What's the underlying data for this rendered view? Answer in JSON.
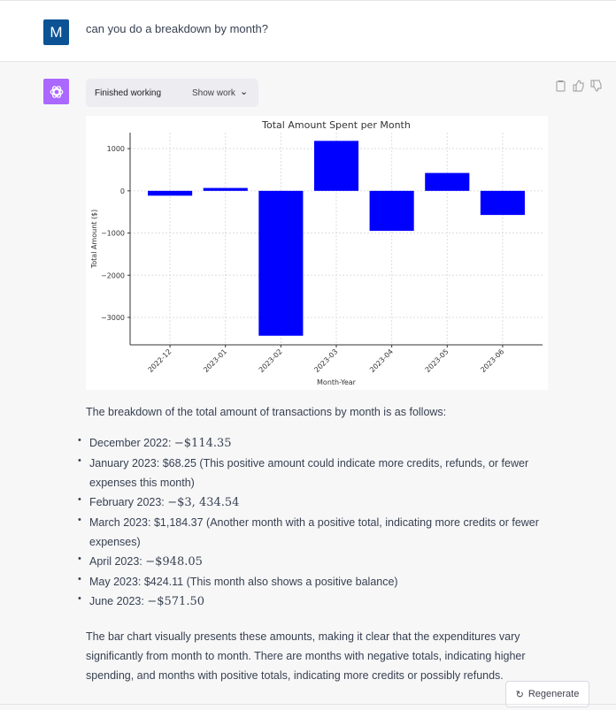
{
  "user": {
    "avatar_letter": "M",
    "message": "can you do a breakdown by month?"
  },
  "assistant": {
    "status": "Finished working",
    "show_work": "Show work",
    "intro": "The breakdown of the total amount of transactions by month is as follows:",
    "items": [
      {
        "label": "December 2022: ",
        "value": "−$114.35",
        "note": ""
      },
      {
        "label": "January 2023: ",
        "value": "$68.25",
        "note": " (This positive amount could indicate more credits, refunds, or fewer expenses this month)"
      },
      {
        "label": "February 2023: ",
        "value": "−$3, 434.54",
        "note": ""
      },
      {
        "label": "March 2023: ",
        "value": "$1,184.37",
        "note": " (Another month with a positive total, indicating more credits or fewer expenses)"
      },
      {
        "label": "April 2023: ",
        "value": "−$948.05",
        "note": ""
      },
      {
        "label": "May 2023: ",
        "value": "$424.11",
        "note": " (This month also shows a positive balance)"
      },
      {
        "label": "June 2023: ",
        "value": "−$571.50",
        "note": ""
      }
    ],
    "outro": "The bar chart visually presents these amounts, making it clear that the expenditures vary significantly from month to month. There are months with negative totals, indicating higher spending, and months with positive totals, indicating more credits or possibly refunds.",
    "regenerate": "Regenerate"
  },
  "chart_data": {
    "type": "bar",
    "title": "Total Amount Spent per Month",
    "xlabel": "Month-Year",
    "ylabel": "Total Amount ($)",
    "categories": [
      "2022-12",
      "2023-01",
      "2023-02",
      "2023-03",
      "2023-04",
      "2023-05",
      "2023-06"
    ],
    "values": [
      -114.35,
      68.25,
      -3434.54,
      1184.37,
      -948.05,
      424.11,
      -571.5
    ],
    "ylim": [
      -3650,
      1380
    ],
    "yticks": [
      1000,
      0,
      -1000,
      -2000,
      -3000
    ],
    "ytick_labels": [
      "1000",
      "0",
      "−1000",
      "−2000",
      "−3000"
    ],
    "bar_color": "#0000ff",
    "grid": true
  }
}
